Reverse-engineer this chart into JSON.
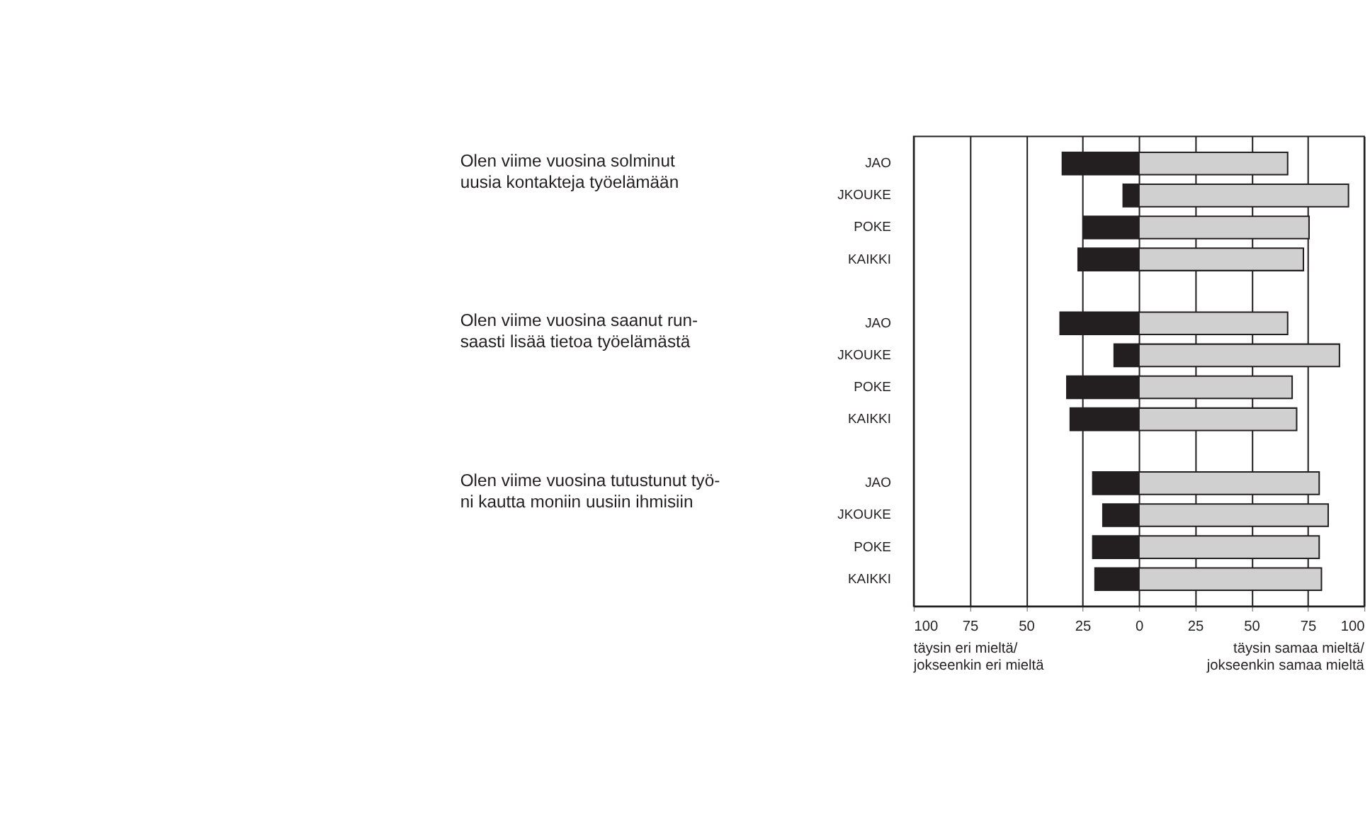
{
  "chart_data": {
    "type": "bar",
    "orientation": "horizontal",
    "stacked": true,
    "categories": [
      "JAO",
      "JKOUKE",
      "POKE",
      "KAIKKI",
      null,
      "JAO",
      "JKOUKE",
      "POKE",
      "KAIKKI",
      null,
      "JAO",
      "JKOUKE",
      "POKE",
      "KAIKKI"
    ],
    "series": [
      {
        "color": "#231f20",
        "values": [
          -34,
          -7,
          -24.5,
          -27,
          null,
          -35,
          -11,
          -32,
          -30.5,
          null,
          -20.5,
          -16,
          -20.5,
          -19.5
        ]
      },
      {
        "color": "#d0d0d0",
        "values": [
          66,
          93,
          75.5,
          73,
          null,
          66,
          89,
          68,
          70,
          null,
          80,
          84,
          80,
          81
        ]
      }
    ],
    "xlim": [
      -100,
      100
    ],
    "xticks": [
      {
        "value": -100,
        "label": "100"
      },
      {
        "value": -75,
        "label": "75"
      },
      {
        "value": -50,
        "label": "50"
      },
      {
        "value": -25,
        "label": "25"
      },
      0,
      25,
      50,
      75,
      100
    ],
    "grid": "x",
    "annotations": [
      "Olen viime vuosina solminut\nuusia kontakteja työelämään",
      "Olen viime vuosina saanut run-\nsaasti lisää tietoa työelämästä",
      "Olen viime vuosina tutustunut työ-\nni kautta moniin uusiin ihmisiin",
      "täysin eri mieltä/\njokseenkin eri mieltä",
      "täysin samaa mieltä/\njokseenkin samaa mieltä"
    ]
  }
}
